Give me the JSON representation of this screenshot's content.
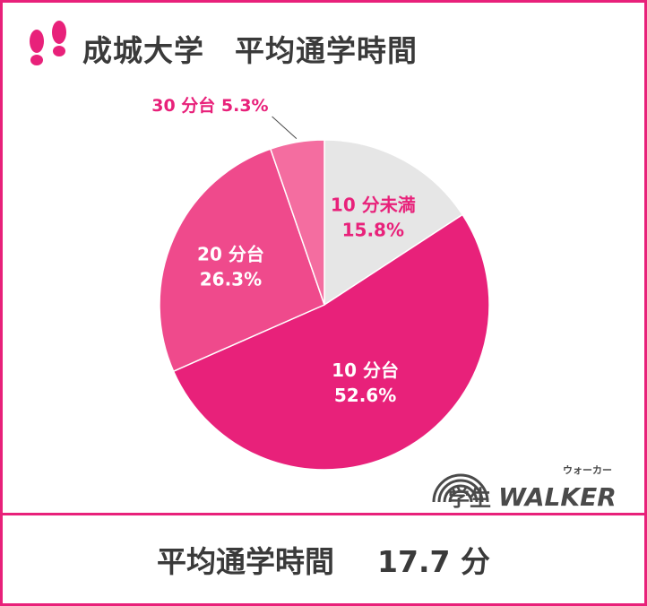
{
  "title": "成城大学　平均通学時間",
  "summary": {
    "label": "平均通学時間",
    "value": "17.7 分"
  },
  "logo": {
    "text_main": "学生WALKER",
    "text_ruby": "ウォーカー"
  },
  "colors": {
    "accent": "#e8217a",
    "text": "#3a3a3a",
    "slice_under10": "#e6e6e6",
    "slice_10s": "#e8217a",
    "slice_20s": "#ef4a8c",
    "slice_30s": "#f46da0"
  },
  "chart_data": {
    "type": "pie",
    "title": "成城大学　平均通学時間",
    "start_angle_deg": 0,
    "direction": "clockwise",
    "slices": [
      {
        "label": "10 分未満",
        "value": 15.8,
        "value_label": "15.8%",
        "color": "#e6e6e6",
        "label_color": "#e8217a"
      },
      {
        "label": "10 分台",
        "value": 52.6,
        "value_label": "52.6%",
        "color": "#e8217a",
        "label_color": "#ffffff"
      },
      {
        "label": "20 分台",
        "value": 26.3,
        "value_label": "26.3%",
        "color": "#ef4a8c",
        "label_color": "#ffffff"
      },
      {
        "label": "30 分台",
        "value": 5.3,
        "value_label": "5.3%",
        "color": "#f46da0",
        "label_color": "#e8217a",
        "outside": true
      }
    ]
  }
}
